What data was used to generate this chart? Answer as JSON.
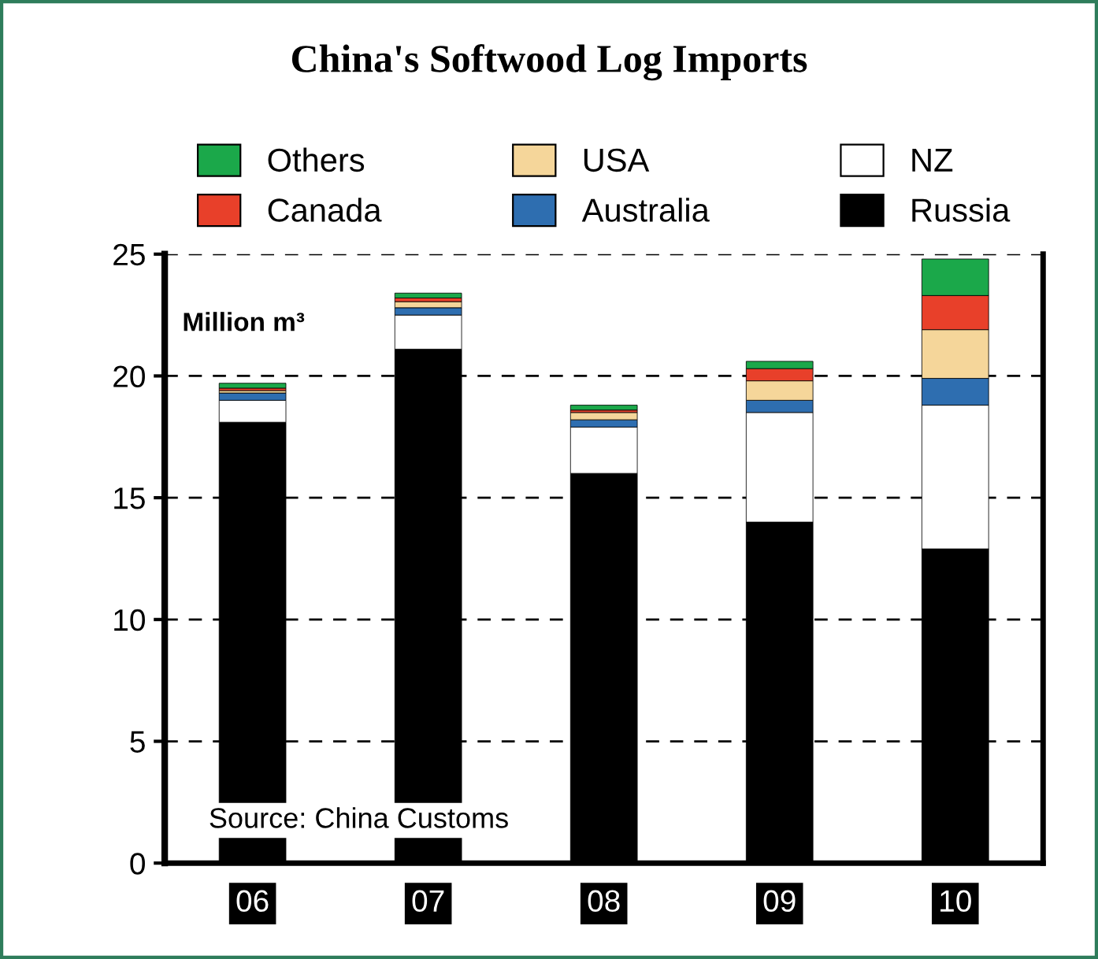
{
  "chart_data": {
    "type": "bar",
    "title": "China's Softwood Log Imports",
    "stacked": true,
    "categories": [
      "06",
      "07",
      "08",
      "09",
      "10"
    ],
    "series": [
      {
        "name": "Russia",
        "color": "#000000",
        "values": [
          18.1,
          21.1,
          16.0,
          14.0,
          12.9
        ]
      },
      {
        "name": "NZ",
        "color": "#ffffff",
        "values": [
          0.9,
          1.4,
          1.9,
          4.5,
          5.9
        ]
      },
      {
        "name": "Australia",
        "color": "#2e6eb0",
        "values": [
          0.3,
          0.3,
          0.3,
          0.5,
          1.1
        ]
      },
      {
        "name": "USA",
        "color": "#f5d69a",
        "values": [
          0.1,
          0.25,
          0.3,
          0.8,
          2.0
        ]
      },
      {
        "name": "Canada",
        "color": "#e8402a",
        "values": [
          0.1,
          0.15,
          0.1,
          0.5,
          1.4
        ]
      },
      {
        "name": "Others",
        "color": "#1ba84a",
        "values": [
          0.2,
          0.2,
          0.2,
          0.3,
          1.5
        ]
      }
    ],
    "ylim": [
      0,
      25
    ],
    "yticks": [
      0,
      5,
      10,
      15,
      20,
      25
    ],
    "grid": "y",
    "legend": "top",
    "annotations": [
      "Million m³",
      "Source: China Customs"
    ]
  }
}
